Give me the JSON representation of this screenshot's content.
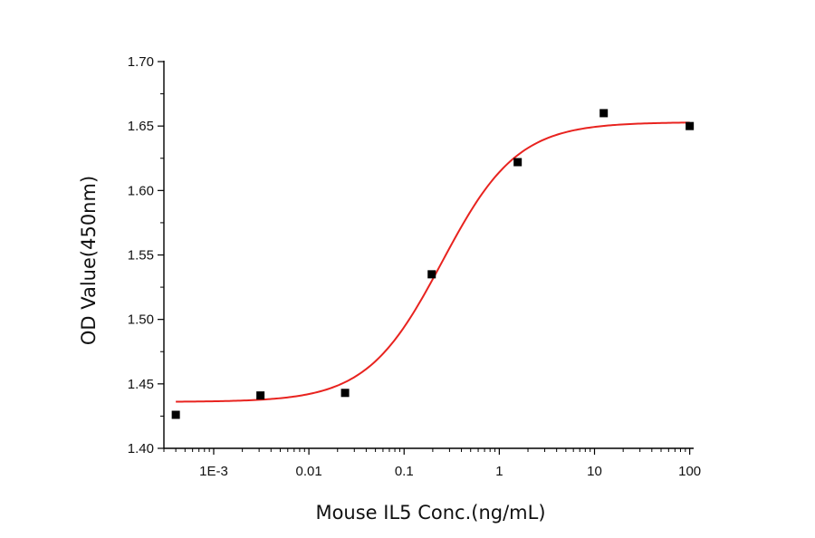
{
  "chart_data": {
    "type": "scatter",
    "title": "",
    "xlabel": "Mouse IL5 Conc.(ng/mL)",
    "ylabel": "OD Value(450nm)",
    "x_scale": "log",
    "xlim": [
      0.0003,
      110
    ],
    "ylim": [
      1.4,
      1.7
    ],
    "x_ticks": [
      {
        "value": 0.001,
        "label": "1E-3"
      },
      {
        "value": 0.01,
        "label": "0.01"
      },
      {
        "value": 0.1,
        "label": "0.1"
      },
      {
        "value": 1,
        "label": "1"
      },
      {
        "value": 10,
        "label": "10"
      },
      {
        "value": 100,
        "label": "100"
      }
    ],
    "y_ticks": [
      {
        "value": 1.4,
        "label": "1.40"
      },
      {
        "value": 1.45,
        "label": "1.45"
      },
      {
        "value": 1.5,
        "label": "1.50"
      },
      {
        "value": 1.55,
        "label": "1.55"
      },
      {
        "value": 1.6,
        "label": "1.60"
      },
      {
        "value": 1.65,
        "label": "1.65"
      },
      {
        "value": 1.7,
        "label": "1.70"
      }
    ],
    "grid": false,
    "legend": "none",
    "series": [
      {
        "marker": "square",
        "color": "#000000",
        "x": [
          0.0004,
          0.0031,
          0.024,
          0.195,
          1.56,
          12.5,
          100
        ],
        "y": [
          1.426,
          1.441,
          1.443,
          1.535,
          1.622,
          1.66,
          1.65
        ]
      }
    ],
    "fit": {
      "model": "4PL",
      "color": "#e8231f",
      "bottom": 1.436,
      "top": 1.653,
      "ec50": 0.25,
      "hill": 1.1,
      "x_range": [
        0.0004,
        100
      ]
    }
  }
}
